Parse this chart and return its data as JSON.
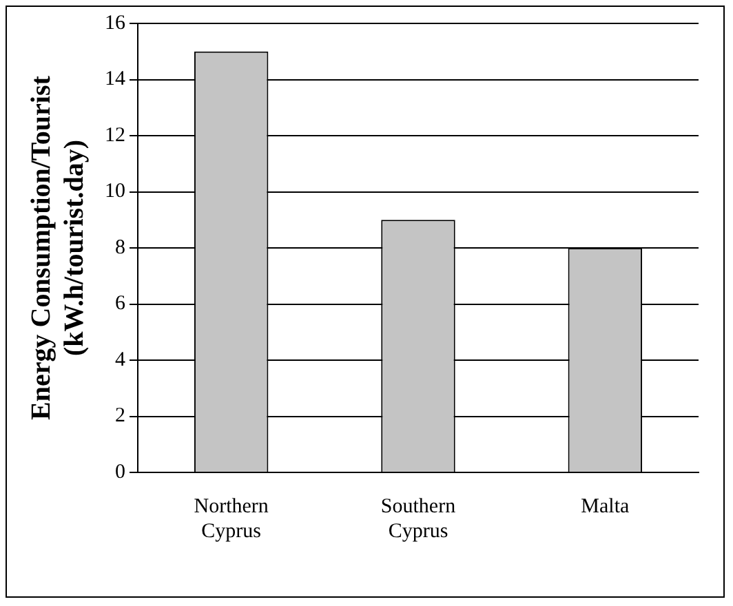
{
  "chart_data": {
    "type": "bar",
    "ylabel": "Energy Consumption/Tourist (kW.h/tourist.day)",
    "categories": [
      "Northern Cyprus",
      "Southern Cyprus",
      "Malta"
    ],
    "values": [
      15,
      9,
      8
    ],
    "color": "#c4c4c4",
    "ylim": [
      0,
      16
    ],
    "yticks": [
      0,
      2,
      4,
      6,
      8,
      10,
      12,
      14,
      16
    ],
    "grid": "y",
    "legend": false
  }
}
